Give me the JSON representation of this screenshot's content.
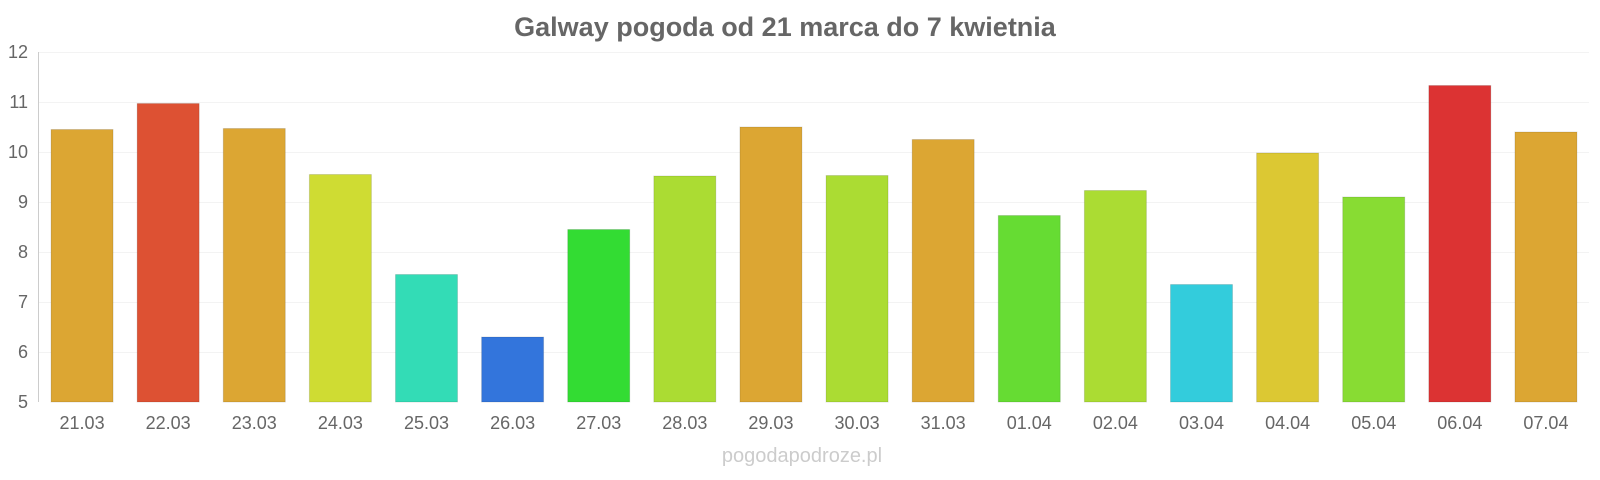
{
  "chart_data": {
    "type": "bar",
    "title": "Galway pogoda od 21 marca do 7 kwietnia",
    "xlabel": "",
    "ylabel": "",
    "categories": [
      "21.03",
      "22.03",
      "23.03",
      "24.03",
      "25.03",
      "26.03",
      "27.03",
      "28.03",
      "29.03",
      "30.03",
      "31.03",
      "01.04",
      "02.04",
      "03.04",
      "04.04",
      "05.04",
      "06.04",
      "07.04"
    ],
    "values": [
      10.45,
      10.97,
      10.47,
      9.55,
      7.55,
      6.3,
      8.45,
      9.52,
      10.5,
      9.53,
      10.25,
      8.73,
      9.23,
      7.35,
      9.98,
      9.1,
      11.33,
      10.4
    ],
    "colors": [
      "#dca633",
      "#dd5133",
      "#dca633",
      "#cfdc33",
      "#33dcb6",
      "#3375dc",
      "#33dc33",
      "#abdc33",
      "#dca633",
      "#abdc33",
      "#dca633",
      "#66dc33",
      "#abdc33",
      "#33ccdc",
      "#dcc833",
      "#88dc33",
      "#dc3333",
      "#dca633"
    ],
    "ylim": [
      5,
      12
    ],
    "yticks": [
      5,
      6,
      7,
      8,
      9,
      10,
      11,
      12
    ],
    "grid": true,
    "legend": "none"
  },
  "watermark": "pogodapodroze.pl"
}
